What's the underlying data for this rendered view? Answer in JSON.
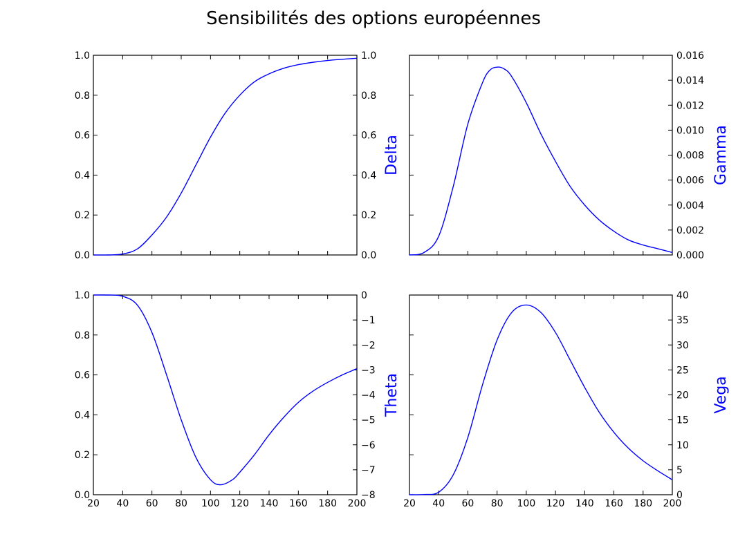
{
  "title": "Sensibilités des options européennes",
  "colors": {
    "line": "#0000ff",
    "axis": "#000000",
    "label": "#0000ff"
  },
  "chart_data": [
    {
      "type": "line",
      "panel": "top-left",
      "ylabel": "Delta",
      "xlim": [
        20,
        200
      ],
      "ylim": [
        0,
        1
      ],
      "right_ylim": [
        0,
        1
      ],
      "x_ticks": [
        20,
        40,
        60,
        80,
        100,
        120,
        140,
        160,
        180,
        200
      ],
      "x_tick_labels_visible": false,
      "left_ticks": [
        "0.0",
        "0.2",
        "0.4",
        "0.6",
        "0.8",
        "1.0"
      ],
      "right_ticks": [
        "0.0",
        "0.2",
        "0.4",
        "0.6",
        "0.8",
        "1.0"
      ],
      "series": [
        {
          "x": [
            20,
            30,
            40,
            50,
            60,
            70,
            80,
            90,
            100,
            110,
            120,
            130,
            140,
            150,
            160,
            170,
            180,
            190,
            200
          ],
          "values": [
            0.0,
            0.0,
            0.005,
            0.03,
            0.1,
            0.19,
            0.31,
            0.45,
            0.59,
            0.71,
            0.8,
            0.867,
            0.907,
            0.935,
            0.953,
            0.965,
            0.974,
            0.98,
            0.985
          ]
        }
      ]
    },
    {
      "type": "line",
      "panel": "top-right",
      "ylabel": "Gamma",
      "xlim": [
        20,
        200
      ],
      "ylim": [
        0,
        0.016
      ],
      "right_ylim": [
        0,
        0.016
      ],
      "x_ticks": [
        20,
        40,
        60,
        80,
        100,
        120,
        140,
        160,
        180,
        200
      ],
      "x_tick_labels_visible": false,
      "left_ticks": [],
      "right_ticks": [
        "0.000",
        "0.002",
        "0.004",
        "0.006",
        "0.008",
        "0.010",
        "0.012",
        "0.014",
        "0.016"
      ],
      "series": [
        {
          "x": [
            20,
            30,
            40,
            50,
            60,
            70,
            75,
            80,
            85,
            90,
            100,
            110,
            120,
            130,
            140,
            150,
            160,
            170,
            180,
            190,
            200
          ],
          "values": [
            0.0,
            0.0002,
            0.0015,
            0.0055,
            0.0105,
            0.0138,
            0.0148,
            0.01505,
            0.0149,
            0.0143,
            0.0122,
            0.0097,
            0.0075,
            0.0055,
            0.004,
            0.0028,
            0.0019,
            0.0012,
            0.0008,
            0.0005,
            0.0002
          ]
        }
      ]
    },
    {
      "type": "line",
      "panel": "bottom-left",
      "ylabel": "Theta",
      "xlim": [
        20,
        200
      ],
      "ylim": [
        -8,
        0
      ],
      "right_ylim": [
        -8,
        0
      ],
      "x_ticks": [
        20,
        40,
        60,
        80,
        100,
        120,
        140,
        160,
        180,
        200
      ],
      "x_tick_labels": [
        "20",
        "40",
        "60",
        "80",
        "100",
        "120",
        "140",
        "160",
        "180",
        "200"
      ],
      "left_ticks": [
        "0.0",
        "0.2",
        "0.4",
        "0.6",
        "0.8",
        "1.0"
      ],
      "right_ticks": [
        "−8",
        "−7",
        "−6",
        "−5",
        "−4",
        "−3",
        "−2",
        "−1",
        "0"
      ],
      "series": [
        {
          "x": [
            20,
            30,
            40,
            50,
            60,
            70,
            80,
            90,
            100,
            107,
            115,
            120,
            130,
            140,
            150,
            160,
            170,
            180,
            190,
            200
          ],
          "values": [
            0.0,
            0.0,
            -0.05,
            -0.4,
            -1.5,
            -3.2,
            -5.0,
            -6.5,
            -7.4,
            -7.6,
            -7.4,
            -7.1,
            -6.4,
            -5.6,
            -4.9,
            -4.3,
            -3.85,
            -3.5,
            -3.2,
            -2.95
          ]
        }
      ]
    },
    {
      "type": "line",
      "panel": "bottom-right",
      "ylabel": "Vega",
      "xlim": [
        20,
        200
      ],
      "ylim": [
        0,
        40
      ],
      "right_ylim": [
        0,
        40
      ],
      "x_ticks": [
        20,
        40,
        60,
        80,
        100,
        120,
        140,
        160,
        180,
        200
      ],
      "x_tick_labels": [
        "20",
        "40",
        "60",
        "80",
        "100",
        "120",
        "140",
        "160",
        "180",
        "200"
      ],
      "left_ticks": [],
      "right_ticks": [
        "0",
        "5",
        "10",
        "15",
        "20",
        "25",
        "30",
        "35",
        "40"
      ],
      "series": [
        {
          "x": [
            20,
            30,
            40,
            50,
            60,
            70,
            80,
            90,
            100,
            110,
            120,
            130,
            140,
            150,
            160,
            170,
            180,
            190,
            200
          ],
          "values": [
            0.0,
            0.05,
            0.5,
            4.0,
            11.5,
            22.0,
            31.0,
            36.5,
            38.0,
            36.5,
            32.5,
            27.0,
            21.5,
            16.5,
            12.5,
            9.3,
            6.8,
            4.8,
            3.0
          ]
        }
      ]
    }
  ]
}
